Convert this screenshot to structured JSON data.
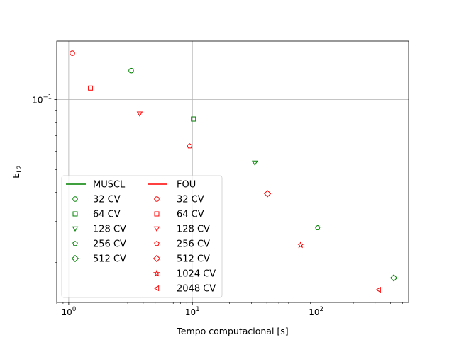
{
  "chart_data": {
    "type": "scatter",
    "xscale": "log",
    "yscale": "log",
    "xlim": [
      0.8,
      560
    ],
    "ylim": [
      0.0135,
      0.178
    ],
    "xlabel": "Tempo computacional [s]",
    "ylabel": "E_L2",
    "x_ticks": [
      {
        "value": 1,
        "base": "10",
        "exp": "0"
      },
      {
        "value": 10,
        "base": "10",
        "exp": "1"
      },
      {
        "value": 100,
        "base": "10",
        "exp": "2"
      }
    ],
    "y_ticks": [
      {
        "value": 0.1,
        "base": "10",
        "exp": "−1"
      }
    ],
    "grid": true,
    "legend_position": "lower-left",
    "series": [
      {
        "name": "MUSCL",
        "color": "#008000",
        "points": [
          {
            "label": "32 CV",
            "marker": "circle",
            "x": 3.2,
            "y": 0.133
          },
          {
            "label": "64 CV",
            "marker": "square",
            "x": 10.2,
            "y": 0.0825
          },
          {
            "label": "128 CV",
            "marker": "triangle-down",
            "x": 32,
            "y": 0.0535
          },
          {
            "label": "256 CV",
            "marker": "pentagon",
            "x": 103,
            "y": 0.0282
          },
          {
            "label": "512 CV",
            "marker": "diamond",
            "x": 425,
            "y": 0.0172
          }
        ]
      },
      {
        "name": "FOU",
        "color": "#ff0000",
        "points": [
          {
            "label": "32 CV",
            "marker": "circle",
            "x": 1.07,
            "y": 0.158
          },
          {
            "label": "64 CV",
            "marker": "square",
            "x": 1.5,
            "y": 0.112
          },
          {
            "label": "128 CV",
            "marker": "triangle-down",
            "x": 3.75,
            "y": 0.0868
          },
          {
            "label": "256 CV",
            "marker": "pentagon",
            "x": 9.5,
            "y": 0.0632
          },
          {
            "label": "512 CV",
            "marker": "diamond",
            "x": 40.5,
            "y": 0.0395
          },
          {
            "label": "1024 CV",
            "marker": "star",
            "x": 75,
            "y": 0.0238
          },
          {
            "label": "2048 CV",
            "marker": "triangle-left",
            "x": 320,
            "y": 0.0153
          }
        ]
      }
    ]
  }
}
